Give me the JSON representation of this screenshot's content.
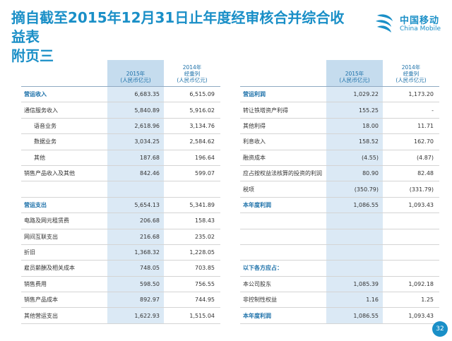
{
  "title": {
    "line1": "摘自截至2015年12月31日止年度经审核合并综合收益表",
    "line2": "附页三"
  },
  "logo": {
    "cn": "中国移动",
    "en": "China Mobile"
  },
  "left_table": {
    "headers": {
      "y2015": "2015年",
      "y2015_unit": "(人民币亿元)",
      "y2014": "2014年",
      "y2014_note": "经重列",
      "y2014_unit": "(人民币亿元)"
    },
    "rows": [
      {
        "label": "营运收入",
        "v2015": "6,683.35",
        "v2014": "6,515.09"
      },
      {
        "label": "通信服务收入",
        "v2015": "5,840.89",
        "v2014": "5,916.02"
      },
      {
        "label": "语音业务",
        "v2015": "2,618.96",
        "v2014": "3,134.76"
      },
      {
        "label": "数据业务",
        "v2015": "3,034.25",
        "v2014": "2,584.62"
      },
      {
        "label": "其他",
        "v2015": "187.68",
        "v2014": "196.64"
      },
      {
        "label": "销售产品收入及其他",
        "v2015": "842.46",
        "v2014": "599.07"
      },
      {
        "label": "",
        "v2015": "",
        "v2014": ""
      },
      {
        "label": "营运支出",
        "v2015": "5,654.13",
        "v2014": "5,341.89"
      },
      {
        "label": "电路及网元租赁费",
        "v2015": "206.68",
        "v2014": "158.43"
      },
      {
        "label": "网间互联支出",
        "v2015": "216.68",
        "v2014": "235.02"
      },
      {
        "label": "折旧",
        "v2015": "1,368.32",
        "v2014": "1,228.05"
      },
      {
        "label": "雇员薪酬及相关成本",
        "v2015": "748.05",
        "v2014": "703.85"
      },
      {
        "label": "销售费用",
        "v2015": "598.50",
        "v2014": "756.55"
      },
      {
        "label": "销售产品成本",
        "v2015": "892.97",
        "v2014": "744.95"
      },
      {
        "label": "其他营运支出",
        "v2015": "1,622.93",
        "v2014": "1,515.04"
      }
    ]
  },
  "right_table": {
    "headers": {
      "y2015": "2015年",
      "y2015_unit": "(人民币亿元)",
      "y2014": "2014年",
      "y2014_note": "经重列",
      "y2014_unit": "(人民币亿元)"
    },
    "rows": [
      {
        "label": "营运利润",
        "v2015": "1,029.22",
        "v2014": "1,173.20"
      },
      {
        "label": "转让铁塔资产利得",
        "v2015": "155.25",
        "v2014": "-"
      },
      {
        "label": "其他利得",
        "v2015": "18.00",
        "v2014": "11.71"
      },
      {
        "label": "利息收入",
        "v2015": "158.52",
        "v2014": "162.70"
      },
      {
        "label": "融资成本",
        "v2015": "(4.55)",
        "v2014": "(4.87)"
      },
      {
        "label": "应占按权益法核算的投资的利润",
        "v2015": "80.90",
        "v2014": "82.48"
      },
      {
        "label": "税项",
        "v2015": "(350.79)",
        "v2014": "(331.79)"
      },
      {
        "label": "本年度利润",
        "v2015": "1,086.55",
        "v2014": "1,093.43"
      },
      {
        "label": "",
        "v2015": "",
        "v2014": ""
      },
      {
        "label": "",
        "v2015": "",
        "v2014": ""
      },
      {
        "label": "",
        "v2015": "",
        "v2014": ""
      },
      {
        "label": "以下各方应占：",
        "v2015": "",
        "v2014": ""
      },
      {
        "label": "本公司股东",
        "v2015": "1,085.39",
        "v2014": "1,092.18"
      },
      {
        "label": "非控制性权益",
        "v2015": "1.16",
        "v2014": "1.25"
      },
      {
        "label": "本年度利润",
        "v2015": "1,086.55",
        "v2014": "1,093.43"
      }
    ]
  },
  "page_number": "32",
  "colors": {
    "accent": "#1a8fc7",
    "header_blue": "#c5dcee",
    "column_blue": "#dbe9f5"
  }
}
